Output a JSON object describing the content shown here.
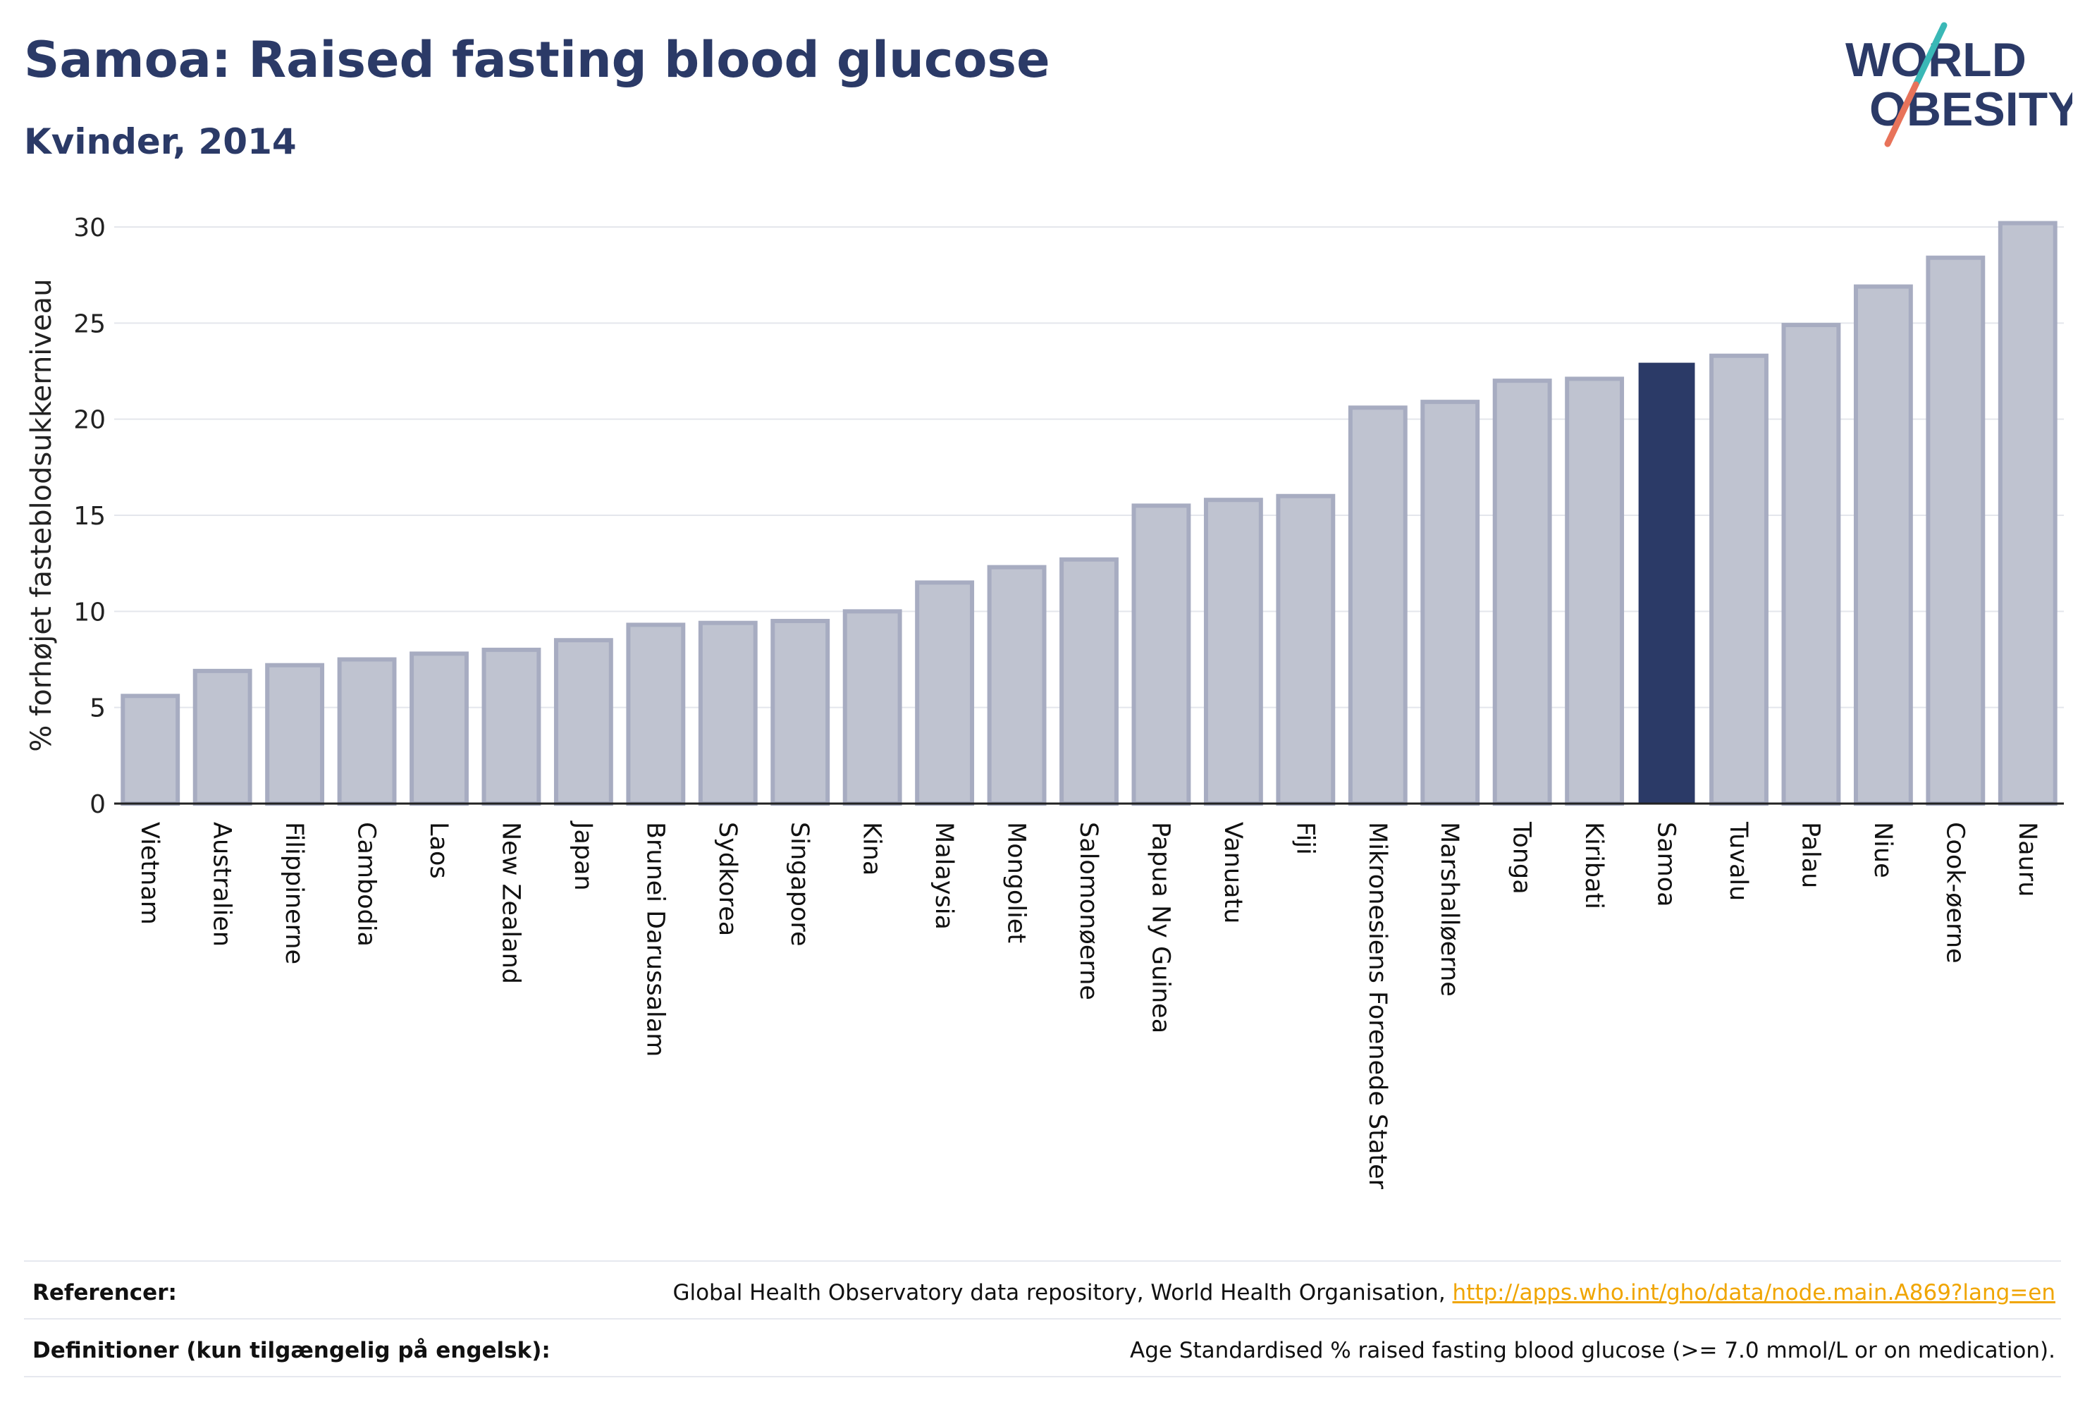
{
  "header": {
    "title": "Samoa: Raised fasting blood glucose",
    "subtitle": "Kvinder, 2014"
  },
  "logo": {
    "line1": "WORLD",
    "line2": "OBESITY",
    "text_color": "#2b3a67",
    "slash_top_color": "#3ab8b6",
    "slash_bottom_color": "#e8735a"
  },
  "chart_data": {
    "type": "bar",
    "ylabel": "% forhøjet fasteblodsukkerniveau",
    "xlabel": "",
    "ylim": [
      0,
      30
    ],
    "yticks": [
      0,
      5,
      10,
      15,
      20,
      25,
      30
    ],
    "grid": true,
    "highlight": "Samoa",
    "bar_color": "#bfc3d0",
    "bar_border_color": "#a7acc1",
    "highlight_color": "#2b3a67",
    "categories": [
      "Vietnam",
      "Australien",
      "Filippinerne",
      "Cambodia",
      "Laos",
      "New Zealand",
      "Japan",
      "Brunei Darussalam",
      "Sydkorea",
      "Singapore",
      "Kina",
      "Malaysia",
      "Mongoliet",
      "Salomonøerne",
      "Papua Ny Guinea",
      "Vanuatu",
      "Fiji",
      "Mikronesiens Forenede Stater",
      "Marshalløerne",
      "Tonga",
      "Kiribati",
      "Samoa",
      "Tuvalu",
      "Palau",
      "Niue",
      "Cook-øerne",
      "Nauru"
    ],
    "values": [
      5.6,
      6.9,
      7.2,
      7.5,
      7.8,
      8.0,
      8.5,
      9.3,
      9.4,
      9.5,
      10.0,
      11.5,
      12.3,
      12.7,
      15.5,
      15.8,
      16.0,
      20.6,
      20.9,
      22.0,
      22.1,
      22.9,
      23.3,
      24.9,
      26.9,
      28.4,
      30.2
    ]
  },
  "footer": {
    "references_label": "Referencer:",
    "references_text": "Global Health Observatory data repository, World Health Organisation, ",
    "references_link": "http://apps.who.int/gho/data/node.main.A869?lang=en",
    "definitions_label": "Definitioner (kun tilgængelig på engelsk):",
    "definitions_text": "Age Standardised % raised fasting blood glucose (>= 7.0 mmol/L or on medication)."
  }
}
